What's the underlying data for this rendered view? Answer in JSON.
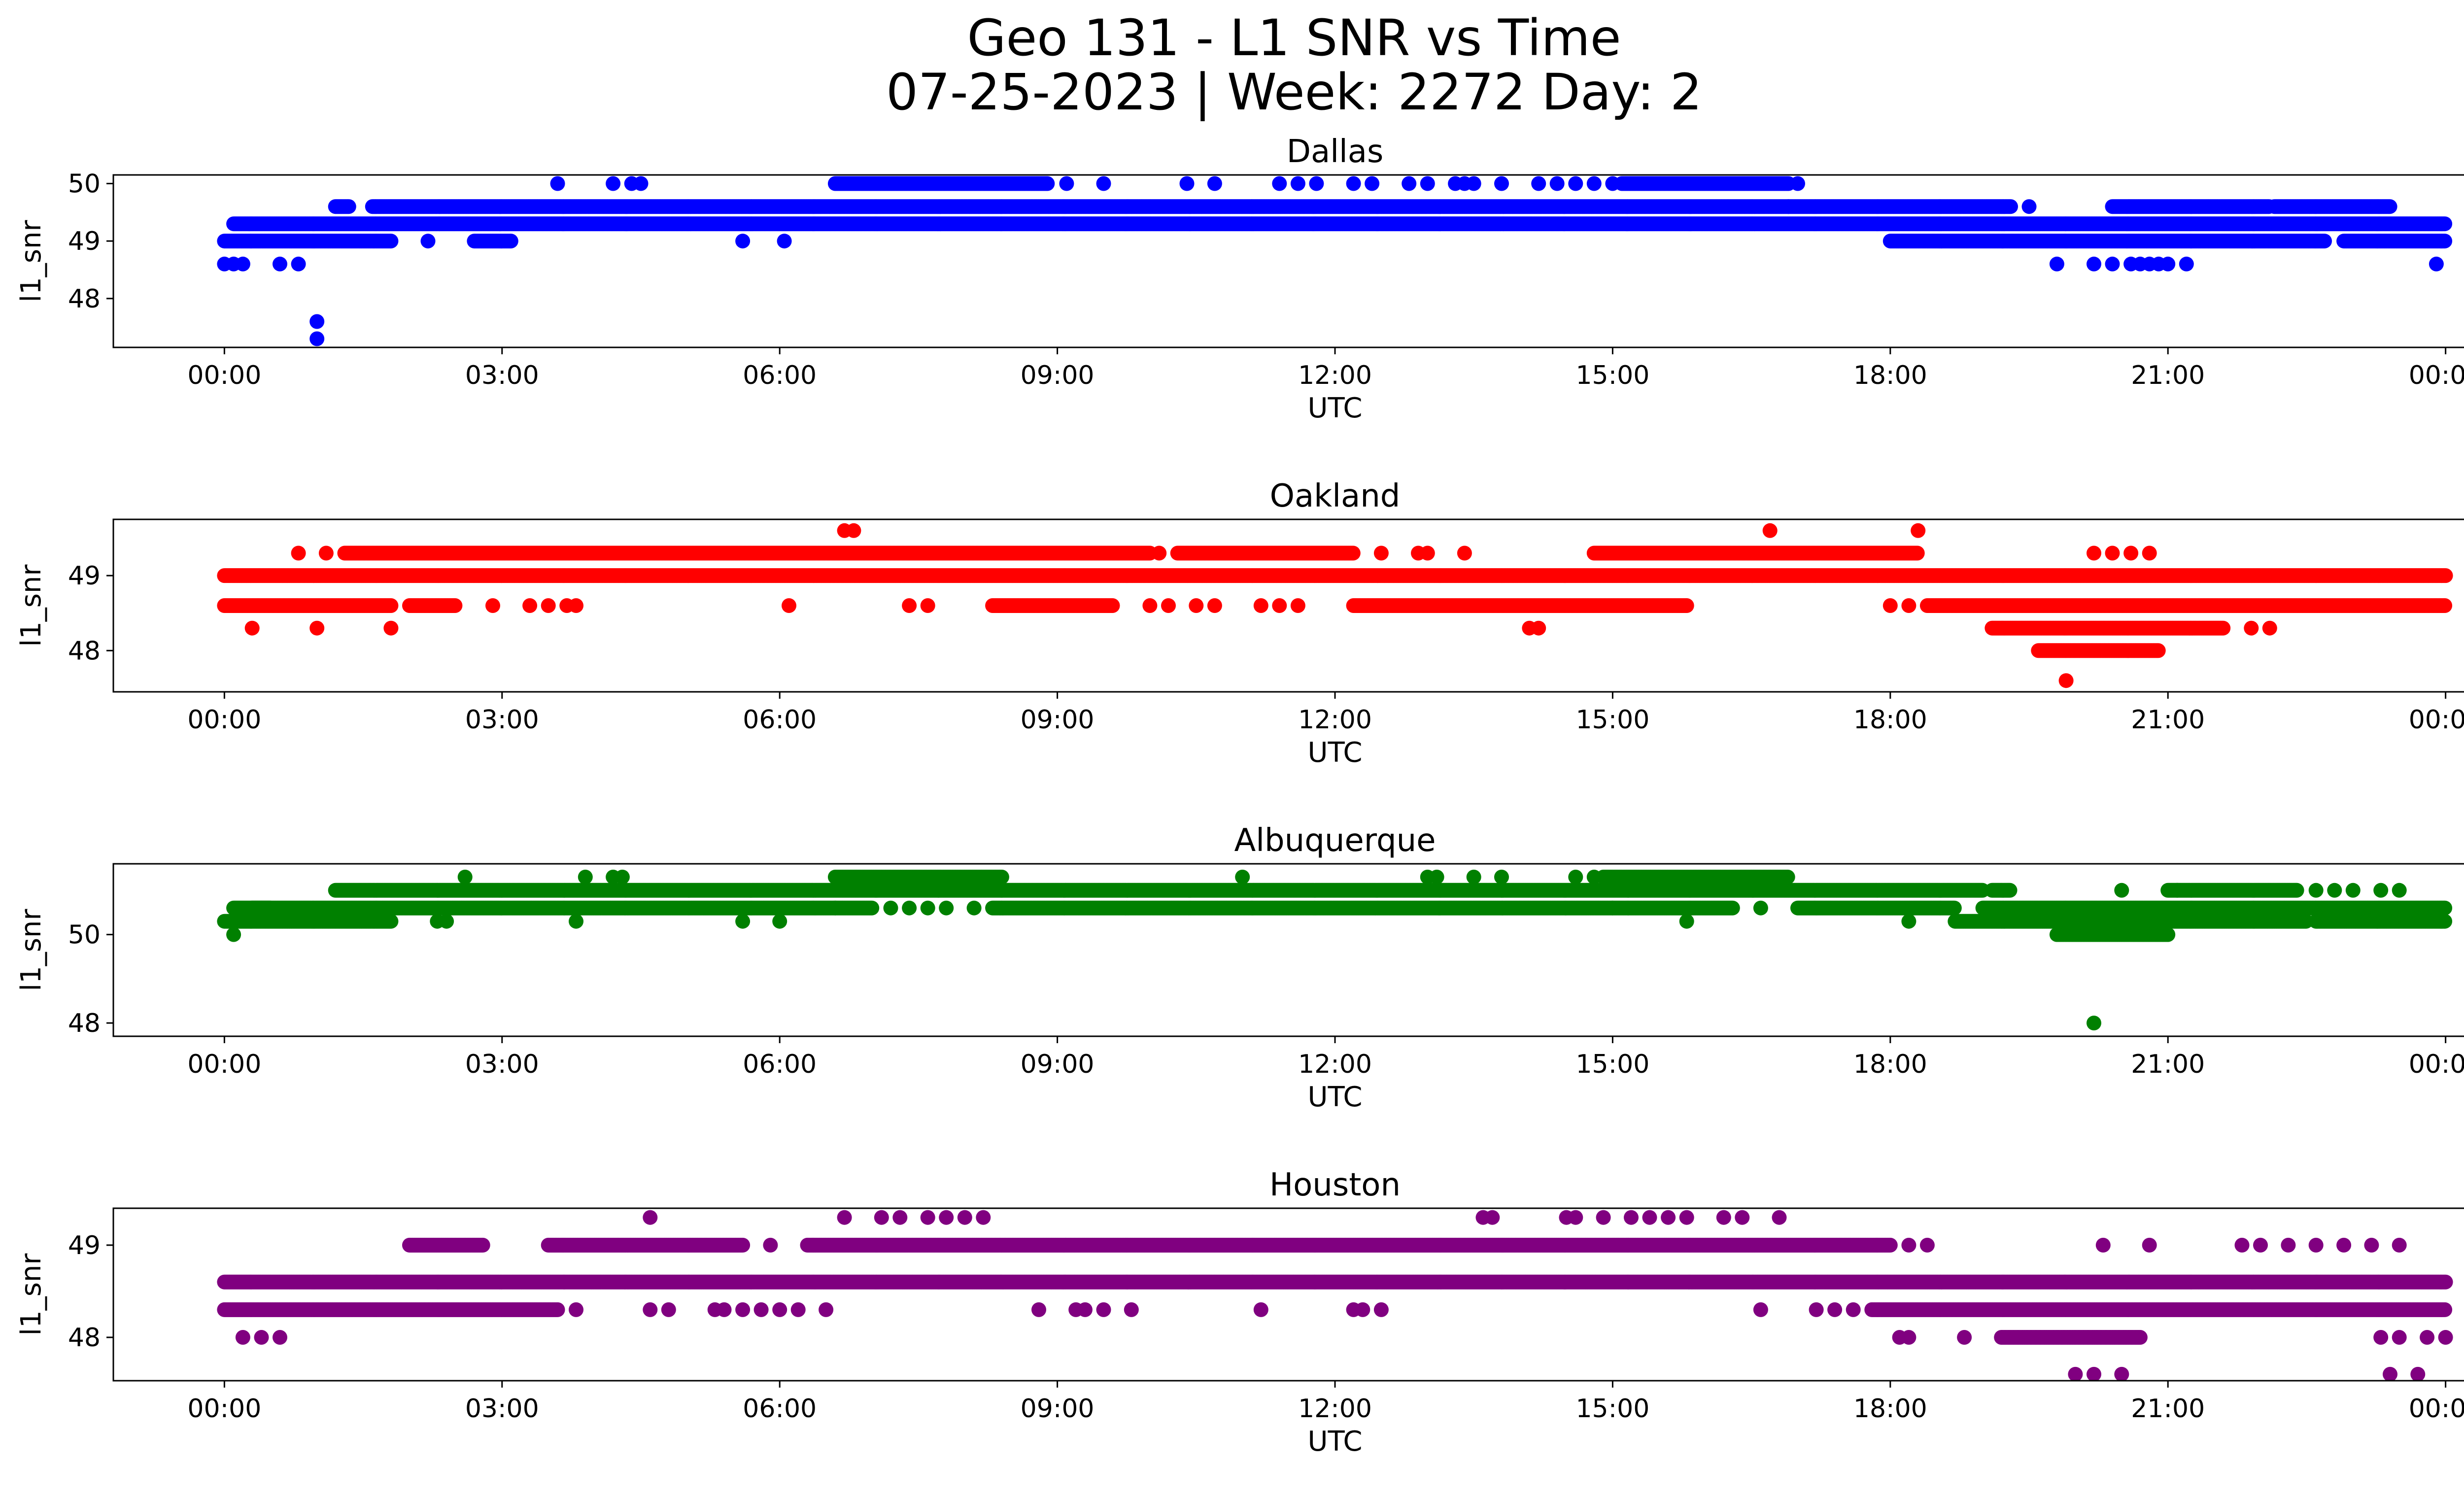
{
  "figure": {
    "title_line1": "Geo 131 - L1 SNR vs Time",
    "title_line2": "07-25-2023 | Week: 2272 Day: 2"
  },
  "chart_data": [
    {
      "type": "scatter",
      "title": "Dallas",
      "xlabel": "UTC",
      "ylabel": "l1_snr",
      "color": "#0000ff",
      "x_ticks": [
        "00:00",
        "03:00",
        "06:00",
        "09:00",
        "12:00",
        "15:00",
        "18:00",
        "21:00",
        "00:00"
      ],
      "y_ticks": [
        48,
        49,
        50
      ],
      "xlim_hours": [
        -1.2,
        25.2
      ],
      "ylim": [
        47.15,
        50.15
      ],
      "series": [
        {
          "y": 49.3,
          "runs": [
            [
              0.1,
              24.0
            ]
          ]
        },
        {
          "y": 49.0,
          "runs": [
            [
              0.0,
              1.8
            ],
            [
              2.7,
              3.1
            ],
            [
              5.6,
              5.6
            ],
            [
              6.05,
              6.05
            ],
            [
              18.0,
              22.7
            ],
            [
              22.9,
              24.0
            ]
          ],
          "points": [
            2.2
          ]
        },
        {
          "y": 49.6,
          "runs": [
            [
              1.2,
              1.35
            ],
            [
              1.6,
              16.9
            ],
            [
              16.9,
              19.3
            ],
            [
              20.4,
              22.1
            ],
            [
              22.15,
              23.4
            ]
          ],
          "points": [
            19.5
          ]
        },
        {
          "y": 50.0,
          "runs": [
            [
              6.6,
              8.9
            ],
            [
              15.1,
              16.9
            ]
          ],
          "points": [
            3.6,
            4.2,
            4.4,
            4.5,
            9.1,
            9.5,
            10.4,
            10.7,
            11.4,
            11.6,
            11.8,
            12.2,
            12.4,
            12.8,
            13.0,
            13.3,
            13.4,
            13.5,
            13.8,
            14.2,
            14.4,
            14.6,
            14.8,
            15.0,
            17.0
          ]
        },
        {
          "y": 48.6,
          "points": [
            0.0,
            0.1,
            0.2,
            0.6,
            0.8,
            19.8,
            20.2,
            20.4,
            20.6,
            20.7,
            20.8,
            20.9,
            21.0,
            21.2,
            23.9
          ]
        },
        {
          "y": 47.6,
          "points": [
            1.0
          ]
        },
        {
          "y": 47.3,
          "points": [
            1.0
          ]
        }
      ]
    },
    {
      "type": "scatter",
      "title": "Oakland",
      "xlabel": "UTC",
      "ylabel": "l1_snr",
      "color": "#ff0000",
      "x_ticks": [
        "00:00",
        "03:00",
        "06:00",
        "09:00",
        "12:00",
        "15:00",
        "18:00",
        "21:00",
        "00:00"
      ],
      "y_ticks": [
        48,
        49
      ],
      "xlim_hours": [
        -1.2,
        25.2
      ],
      "ylim": [
        47.45,
        49.75
      ],
      "series": [
        {
          "y": 49.0,
          "runs": [
            [
              0.0,
              24.0
            ]
          ]
        },
        {
          "y": 48.6,
          "runs": [
            [
              0.0,
              1.8
            ],
            [
              2.0,
              2.5
            ],
            [
              8.3,
              9.6
            ],
            [
              12.2,
              15.8
            ],
            [
              18.4,
              24.0
            ]
          ],
          "points": [
            2.9,
            3.3,
            3.5,
            3.7,
            3.8,
            6.1,
            7.4,
            7.6,
            10.0,
            10.2,
            10.5,
            10.7,
            11.2,
            11.4,
            11.6,
            18.0,
            18.2
          ]
        },
        {
          "y": 49.3,
          "runs": [
            [
              1.3,
              10.0
            ],
            [
              10.3,
              12.2
            ],
            [
              14.8,
              18.3
            ]
          ],
          "points": [
            0.8,
            1.1,
            10.1,
            12.5,
            12.9,
            13.0,
            13.4,
            20.2,
            20.4,
            20.6,
            20.8
          ]
        },
        {
          "y": 48.3,
          "runs": [
            [
              19.1,
              21.6
            ]
          ],
          "points": [
            0.3,
            1.0,
            1.8,
            14.1,
            14.2,
            21.9,
            22.1
          ]
        },
        {
          "y": 48.0,
          "runs": [
            [
              19.6,
              20.9
            ]
          ]
        },
        {
          "y": 49.6,
          "points": [
            6.7,
            6.8,
            16.7,
            18.3
          ]
        },
        {
          "y": 47.6,
          "points": [
            19.9
          ]
        }
      ]
    },
    {
      "type": "scatter",
      "title": "Albuquerque",
      "xlabel": "UTC",
      "ylabel": "l1_snr",
      "color": "#008000",
      "x_ticks": [
        "00:00",
        "03:00",
        "06:00",
        "09:00",
        "12:00",
        "15:00",
        "18:00",
        "21:00",
        "00:00"
      ],
      "y_ticks": [
        48,
        50
      ],
      "xlim_hours": [
        -1.2,
        25.2
      ],
      "ylim": [
        47.7,
        51.6
      ],
      "series": [
        {
          "y": 50.3,
          "runs": [
            [
              0.0,
              1.8
            ],
            [
              18.7,
              22.5
            ],
            [
              22.6,
              24.0
            ]
          ],
          "points": [
            2.3,
            2.4,
            3.8,
            5.6,
            6.0,
            15.8,
            18.2
          ]
        },
        {
          "y": 50.6,
          "runs": [
            [
              0.1,
              0.5
            ],
            [
              0.3,
              6.6
            ],
            [
              6.6,
              7.0
            ],
            [
              8.3,
              15.0
            ],
            [
              15.0,
              16.3
            ],
            [
              17.0,
              18.7
            ],
            [
              19.0,
              24.0
            ]
          ],
          "points": [
            7.2,
            7.4,
            7.6,
            7.8,
            8.1,
            16.6
          ]
        },
        {
          "y": 51.0,
          "runs": [
            [
              1.2,
              19.0
            ],
            [
              19.1,
              19.3
            ],
            [
              21.0,
              22.4
            ]
          ],
          "points": [
            20.5,
            21.1,
            22.6,
            22.8,
            23.0,
            23.3,
            23.5
          ]
        },
        {
          "y": 51.3,
          "runs": [
            [
              6.6,
              8.4
            ],
            [
              14.9,
              16.9
            ]
          ],
          "points": [
            2.6,
            3.9,
            4.2,
            4.3,
            11.0,
            13.0,
            13.1,
            13.5,
            13.8,
            14.6,
            14.8
          ]
        },
        {
          "y": 50.0,
          "runs": [
            [
              19.8,
              21.0
            ]
          ],
          "points": [
            0.1
          ]
        },
        {
          "y": 48.0,
          "points": [
            20.2
          ]
        }
      ]
    },
    {
      "type": "scatter",
      "title": "Houston",
      "xlabel": "UTC",
      "ylabel": "l1_snr",
      "color": "#800080",
      "x_ticks": [
        "00:00",
        "03:00",
        "06:00",
        "09:00",
        "12:00",
        "15:00",
        "18:00",
        "21:00",
        "00:00"
      ],
      "y_ticks": [
        48,
        49
      ],
      "xlim_hours": [
        -1.2,
        25.2
      ],
      "ylim": [
        47.53,
        49.4
      ],
      "series": [
        {
          "y": 48.6,
          "runs": [
            [
              0.0,
              24.0
            ]
          ]
        },
        {
          "y": 48.3,
          "runs": [
            [
              0.0,
              3.6
            ],
            [
              17.8,
              24.0
            ]
          ],
          "points": [
            3.8,
            4.6,
            4.8,
            5.3,
            5.4,
            5.6,
            5.8,
            6.0,
            6.2,
            6.5,
            8.8,
            9.2,
            9.3,
            9.5,
            9.8,
            11.2,
            12.2,
            12.3,
            12.5,
            16.6,
            17.2,
            17.4,
            17.6
          ]
        },
        {
          "y": 49.0,
          "runs": [
            [
              2.0,
              2.8
            ],
            [
              3.5,
              5.6
            ],
            [
              6.3,
              18.0
            ]
          ],
          "points": [
            5.9,
            18.2,
            18.4,
            20.3,
            20.8,
            21.8,
            22.0,
            22.3,
            22.6,
            22.9,
            23.2,
            23.5
          ]
        },
        {
          "y": 48.0,
          "runs": [
            [
              19.2,
              20.7
            ]
          ],
          "points": [
            0.2,
            0.4,
            0.6,
            18.1,
            18.2,
            18.8,
            23.3,
            23.5,
            23.8,
            24.0
          ]
        },
        {
          "y": 49.3,
          "points": [
            4.6,
            6.7,
            7.1,
            7.3,
            7.6,
            7.8,
            8.0,
            8.2,
            13.6,
            13.7,
            14.5,
            14.6,
            14.9,
            15.2,
            15.4,
            15.6,
            15.8,
            16.2,
            16.4,
            16.8
          ]
        },
        {
          "y": 47.6,
          "points": [
            20.0,
            20.2,
            20.5,
            23.4,
            23.7
          ]
        }
      ]
    }
  ]
}
